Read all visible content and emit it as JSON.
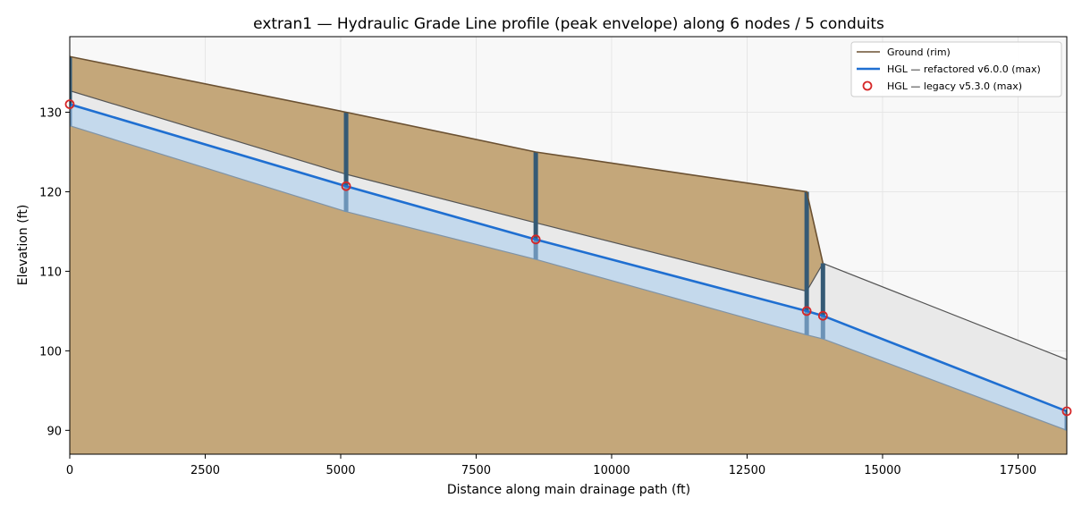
{
  "chart_data": {
    "type": "line",
    "title": "extran1 — Hydraulic Grade Line profile (peak envelope) along 6 nodes / 5 conduits",
    "xlabel": "Distance along main drainage path (ft)",
    "ylabel": "Elevation (ft)",
    "xlim": [
      0,
      18400
    ],
    "ylim": [
      87,
      139.5
    ],
    "grid": true,
    "legend_position": "top-right",
    "x_ticks": [
      {
        "value": 0,
        "label": "0"
      },
      {
        "value": 2500,
        "label": "2500"
      },
      {
        "value": 5000,
        "label": "5000"
      },
      {
        "value": 7500,
        "label": "7500"
      },
      {
        "value": 10000,
        "label": "10000"
      },
      {
        "value": 12500,
        "label": "12500"
      },
      {
        "value": 15000,
        "label": "15000"
      },
      {
        "value": 17500,
        "label": "17500"
      }
    ],
    "y_ticks": [
      {
        "value": 90,
        "label": "90"
      },
      {
        "value": 100,
        "label": "100"
      },
      {
        "value": 110,
        "label": "110"
      },
      {
        "value": 120,
        "label": "120"
      },
      {
        "value": 130,
        "label": "130"
      }
    ],
    "node_stations": [
      0,
      5100,
      8600,
      13600,
      13900,
      18400
    ],
    "ground_rim": {
      "x": [
        0,
        5100,
        8600,
        13600,
        13900
      ],
      "y": [
        137,
        130,
        125,
        120,
        111
      ]
    },
    "pipe_crown": {
      "x": [
        0,
        5100,
        8600,
        13600,
        13900,
        18400
      ],
      "y": [
        132.7,
        122.2,
        116.1,
        107.5,
        111,
        98.9
      ]
    },
    "pipe_invert": {
      "x": [
        0,
        5100,
        8600,
        13600,
        13900,
        18400
      ],
      "y": [
        128.3,
        117.5,
        111.5,
        102,
        101.5,
        90
      ]
    },
    "series": [
      {
        "name": "Ground (rim)",
        "style": "line",
        "color": "#6b5132",
        "x": [
          0,
          5100,
          8600,
          13600,
          13900
        ],
        "y": [
          137,
          130,
          125,
          120,
          111
        ]
      },
      {
        "name": "HGL — refactored v6.0.0 (max)",
        "style": "line",
        "color": "#1f6fd1",
        "x": [
          0,
          5100,
          8600,
          13600,
          13900,
          18400
        ],
        "y": [
          131,
          120.7,
          114,
          105,
          104.4,
          92.4
        ]
      },
      {
        "name": "HGL — legacy v5.3.0 (max)",
        "style": "scatter",
        "color": "#d62728",
        "x": [
          0,
          5100,
          8600,
          13600,
          13900,
          18400
        ],
        "y": [
          131,
          120.7,
          114,
          105,
          104.4,
          92.4
        ]
      }
    ],
    "colors": {
      "soil": "#c4a77a",
      "soil_edge": "#6b5132",
      "water_fill": "#c4d9ec",
      "pipe_fill": "#e9e9e9",
      "pipe_edge": "#555555",
      "manhole": "#355a75",
      "manhole_submerged": "#6c93b7",
      "plot_bg": "#f8f8f8",
      "grid": "#e6e6e6"
    }
  }
}
